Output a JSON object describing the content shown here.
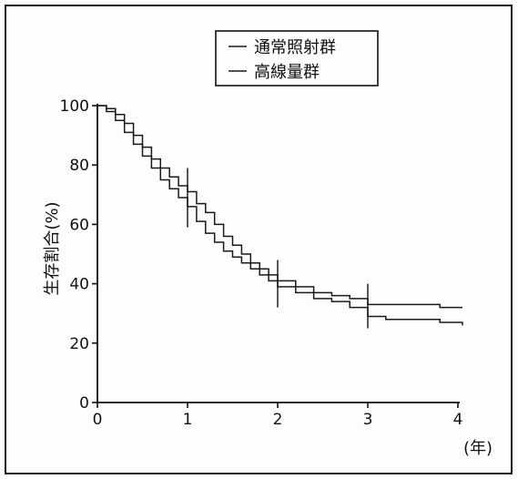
{
  "chart_data": {
    "type": "line",
    "xlabel": "(年)",
    "ylabel": "生存割合(%)",
    "xlim": [
      0,
      4
    ],
    "ylim": [
      0,
      100
    ],
    "x_ticks": [
      0,
      1,
      2,
      3,
      4
    ],
    "y_ticks": [
      0,
      20,
      40,
      60,
      80,
      100
    ],
    "grid": false,
    "legend_position": "top-right",
    "step": true,
    "series": [
      {
        "name": "通常照射群",
        "color": "#1a1a1a",
        "x": [
          0,
          0.1,
          0.2,
          0.3,
          0.4,
          0.5,
          0.6,
          0.7,
          0.8,
          0.9,
          1.0,
          1.1,
          1.2,
          1.3,
          1.4,
          1.5,
          1.6,
          1.7,
          1.8,
          1.9,
          2.0,
          2.2,
          2.4,
          2.6,
          2.8,
          3.0,
          3.2,
          3.5,
          3.8,
          4.05
        ],
        "y": [
          100,
          99,
          97,
          94,
          90,
          86,
          82,
          79,
          76,
          73,
          71,
          67,
          64,
          60,
          56,
          53,
          50,
          47,
          45,
          43,
          41,
          39,
          37,
          36,
          35,
          33,
          33,
          33,
          32,
          32
        ]
      },
      {
        "name": "高線量群",
        "color": "#1a1a1a",
        "x": [
          0,
          0.1,
          0.2,
          0.3,
          0.4,
          0.5,
          0.6,
          0.7,
          0.8,
          0.9,
          1.0,
          1.1,
          1.2,
          1.3,
          1.4,
          1.5,
          1.6,
          1.7,
          1.8,
          1.9,
          2.0,
          2.2,
          2.4,
          2.6,
          2.8,
          3.0,
          3.2,
          3.5,
          3.8,
          4.05
        ],
        "y": [
          100,
          98,
          95,
          91,
          87,
          83,
          79,
          75,
          72,
          69,
          66,
          61,
          57,
          54,
          51,
          49,
          47,
          45,
          43,
          41,
          39,
          37,
          35,
          34,
          32,
          29,
          28,
          28,
          27,
          26
        ]
      }
    ],
    "censor_marks": [
      {
        "x": 1.0,
        "ymin": 59,
        "ymax": 79
      },
      {
        "x": 2.0,
        "ymin": 32,
        "ymax": 48
      },
      {
        "x": 3.0,
        "ymin": 25,
        "ymax": 40
      }
    ]
  }
}
